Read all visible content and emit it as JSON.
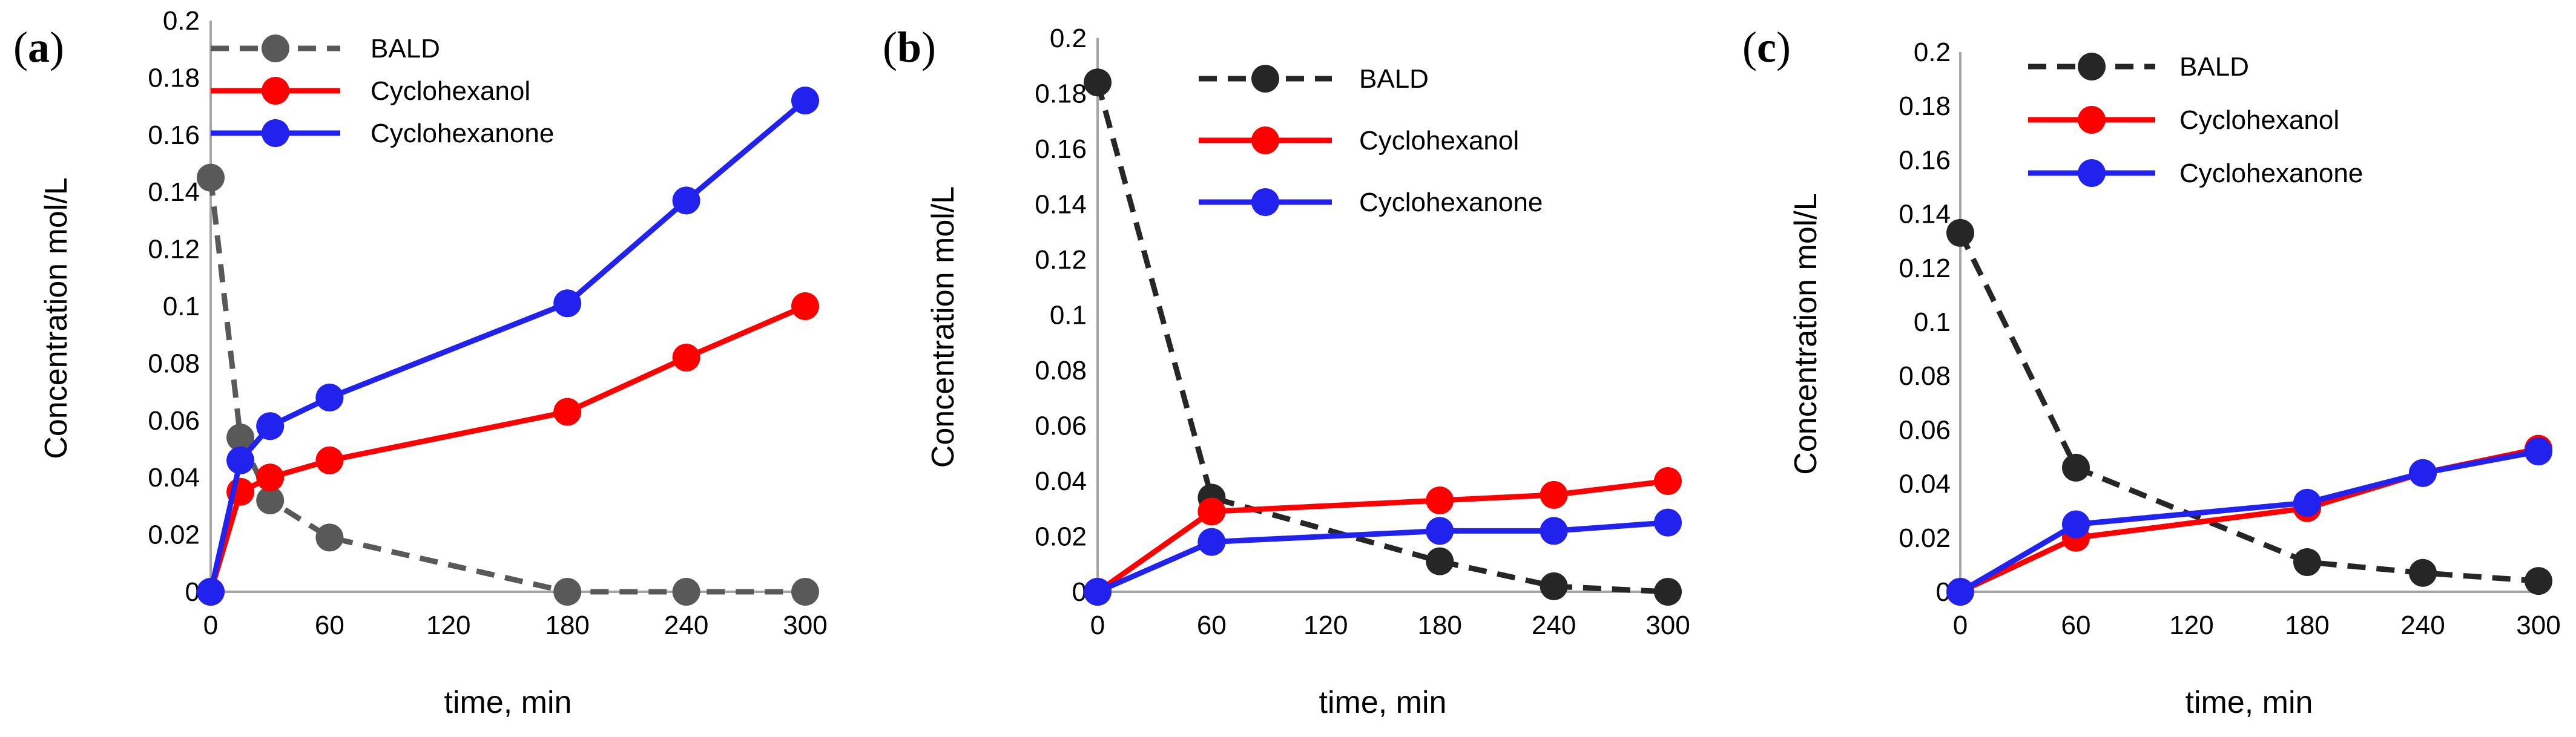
{
  "chart_data": [
    {
      "type": "line",
      "panel_label": "a",
      "xlabel": "time, min",
      "ylabel": "Concentration mol/L",
      "xlim": [
        0,
        300
      ],
      "ylim": [
        0,
        0.2
      ],
      "xticks": [
        "0",
        "60",
        "120",
        "180",
        "240",
        "300"
      ],
      "yticks": [
        "0",
        "0.02",
        "0.04",
        "0.06",
        "0.08",
        "0.1",
        "0.12",
        "0.14",
        "0.16",
        "0.18",
        "0.2"
      ],
      "legend_position": "top-left",
      "series": [
        {
          "name": "BALD",
          "color": "#595959",
          "dashed": true,
          "x": [
            0,
            15,
            30,
            60,
            180,
            240,
            300
          ],
          "y": [
            0.145,
            0.054,
            0.032,
            0.019,
            0.0,
            0.0,
            0.0
          ]
        },
        {
          "name": "Cyclohexanol",
          "color": "#ff0000",
          "dashed": false,
          "x": [
            0,
            15,
            30,
            60,
            180,
            240,
            300
          ],
          "y": [
            0.0,
            0.035,
            0.04,
            0.046,
            0.063,
            0.082,
            0.1
          ]
        },
        {
          "name": "Cyclohexanone",
          "color": "#2222ee",
          "dashed": false,
          "x": [
            0,
            15,
            30,
            60,
            180,
            240,
            300
          ],
          "y": [
            0.0,
            0.046,
            0.058,
            0.068,
            0.101,
            0.137,
            0.172
          ]
        }
      ]
    },
    {
      "type": "line",
      "panel_label": "b",
      "xlabel": "time, min",
      "ylabel": "Concentration mol/L",
      "xlim": [
        0,
        300
      ],
      "ylim": [
        0,
        0.2
      ],
      "xticks": [
        "0",
        "60",
        "120",
        "180",
        "240",
        "300"
      ],
      "yticks": [
        "0",
        "0.02",
        "0.04",
        "0.06",
        "0.08",
        "0.1",
        "0.12",
        "0.14",
        "0.16",
        "0.18",
        "0.2"
      ],
      "legend_position": "top-center",
      "series": [
        {
          "name": "BALD",
          "color": "#262626",
          "dashed": true,
          "x": [
            0,
            60,
            180,
            240,
            300
          ],
          "y": [
            0.184,
            0.034,
            0.011,
            0.002,
            0.0
          ]
        },
        {
          "name": "Cyclohexanol",
          "color": "#ff0000",
          "dashed": false,
          "x": [
            0,
            60,
            180,
            240,
            300
          ],
          "y": [
            0.0,
            0.029,
            0.033,
            0.035,
            0.04
          ]
        },
        {
          "name": "Cyclohexanone",
          "color": "#2222ee",
          "dashed": false,
          "x": [
            0,
            60,
            180,
            240,
            300
          ],
          "y": [
            0.0,
            0.018,
            0.022,
            0.022,
            0.025
          ]
        }
      ]
    },
    {
      "type": "line",
      "panel_label": "c",
      "xlabel": "time, min",
      "ylabel": "Concentration mol/L",
      "xlim": [
        0,
        300
      ],
      "ylim": [
        0,
        0.2
      ],
      "xticks": [
        "0",
        "60",
        "120",
        "180",
        "240",
        "300"
      ],
      "yticks": [
        "0",
        "0.02",
        "0.04",
        "0.06",
        "0.08",
        "0.1",
        "0.12",
        "0.14",
        "0.16",
        "0.18",
        "0.2"
      ],
      "legend_position": "top-center",
      "series": [
        {
          "name": "BALD",
          "color": "#262626",
          "dashed": true,
          "x": [
            0,
            60,
            180,
            240,
            300
          ],
          "y": [
            0.133,
            0.046,
            0.011,
            0.007,
            0.004
          ]
        },
        {
          "name": "Cyclohexanol",
          "color": "#ff0000",
          "dashed": false,
          "x": [
            0,
            60,
            180,
            240,
            300
          ],
          "y": [
            0.0,
            0.02,
            0.031,
            0.044,
            0.053
          ]
        },
        {
          "name": "Cyclohexanone",
          "color": "#2222ee",
          "dashed": false,
          "x": [
            0,
            60,
            180,
            240,
            300
          ],
          "y": [
            0.0,
            0.025,
            0.033,
            0.044,
            0.052
          ]
        }
      ]
    }
  ]
}
